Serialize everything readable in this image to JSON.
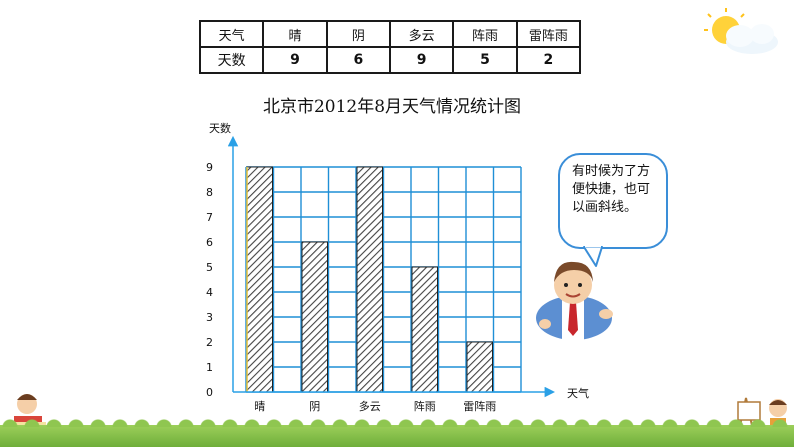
{
  "table": {
    "header_label": "天气",
    "value_label": "天数",
    "columns": [
      "晴",
      "阴",
      "多云",
      "阵雨",
      "雷阵雨"
    ],
    "values": [
      "9",
      "6",
      "9",
      "5",
      "2"
    ]
  },
  "bubble": {
    "lines": [
      "有时候为了方",
      "便快捷，也可",
      "以画斜线。"
    ]
  },
  "colors": {
    "grid": "#1f8fd6",
    "axis": "#2aa0e6",
    "bar_stroke": "#222222",
    "hatch": "#444444",
    "bubble_border": "#3a8ed8"
  },
  "chart_data": {
    "type": "bar",
    "title": "北京市2012年8月天气情况统计图",
    "xlabel": "天气",
    "ylabel": "天数",
    "categories": [
      "晴",
      "阴",
      "多云",
      "阵雨",
      "雷阵雨"
    ],
    "values": [
      9,
      6,
      9,
      5,
      2
    ],
    "ylim": [
      0,
      9
    ],
    "yticks": [
      "0",
      "1",
      "2",
      "3",
      "4",
      "5",
      "6",
      "7",
      "8",
      "9"
    ],
    "bar_fill": "diagonal-hatch",
    "grid": true
  }
}
